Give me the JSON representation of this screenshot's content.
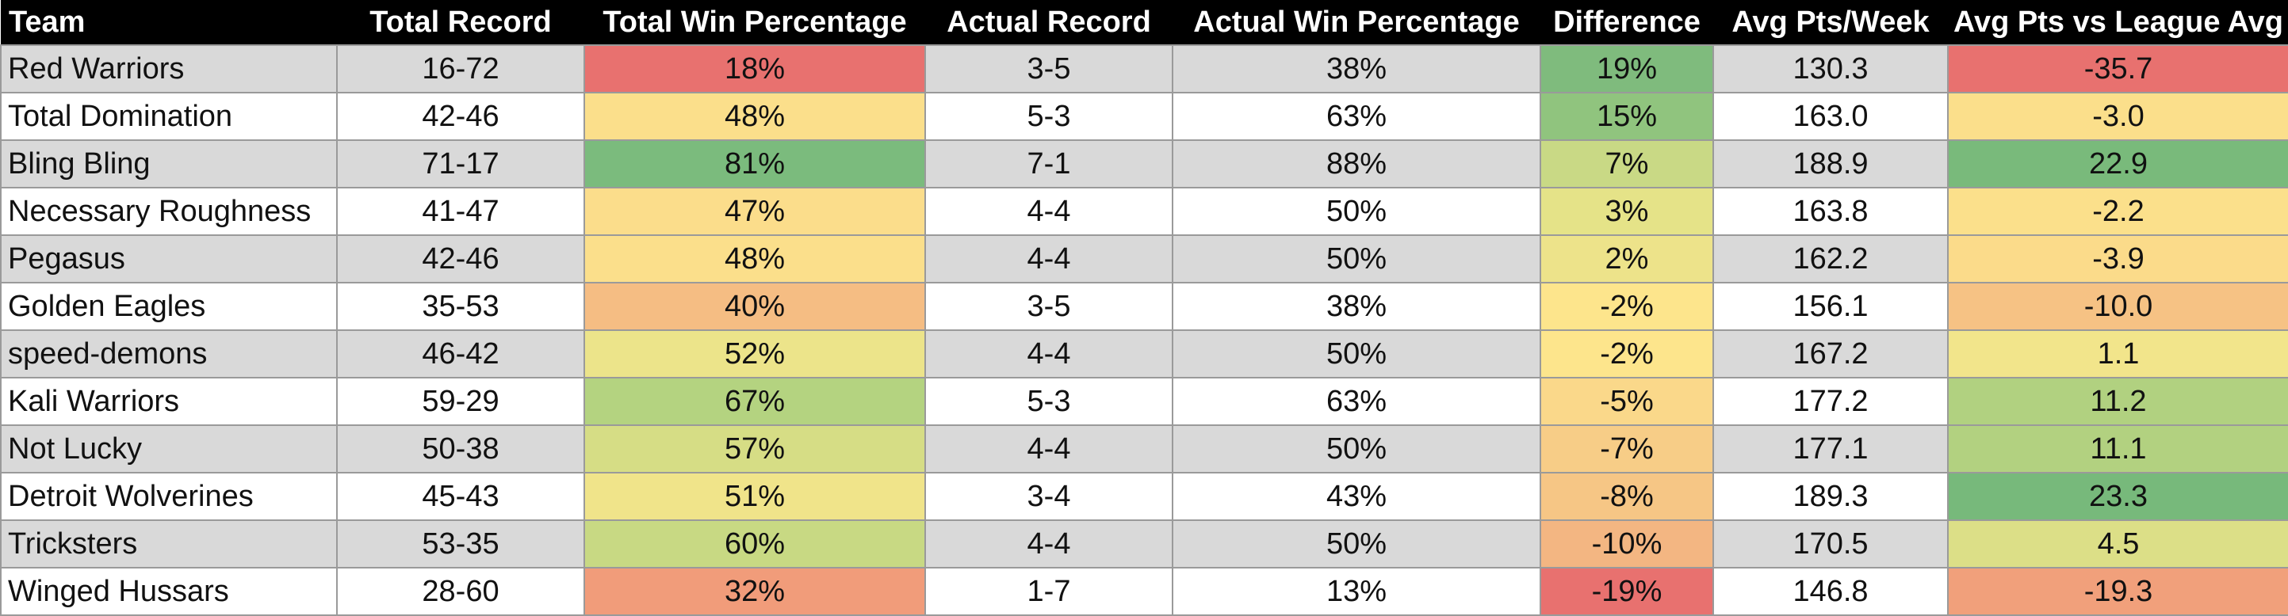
{
  "colors": {
    "header_bg": "#000000",
    "header_text": "#ffffff",
    "stripe": "#d9d9d9"
  },
  "headers": [
    "Team",
    "Total Record",
    "Total Win Percentage",
    "Actual Record",
    "Actual Win Percentage",
    "Difference",
    "Avg Pts/Week",
    "Avg Pts vs League Avg"
  ],
  "rows": [
    {
      "team": "Red Warriors",
      "total_record": "16-72",
      "total_win_pct": "18%",
      "actual_record": "3-5",
      "actual_win_pct": "38%",
      "difference": "19%",
      "avg_pts": "130.3",
      "vs_league": "-35.7",
      "total_win_pct_color": "#e8716f",
      "difference_color": "#7fbb7d",
      "vs_league_color": "#e8716f"
    },
    {
      "team": "Total Domination",
      "total_record": "42-46",
      "total_win_pct": "48%",
      "actual_record": "5-3",
      "actual_win_pct": "63%",
      "difference": "15%",
      "avg_pts": "163.0",
      "vs_league": "-3.0",
      "total_win_pct_color": "#fbdf8b",
      "difference_color": "#90c47e",
      "vs_league_color": "#fbdf8b"
    },
    {
      "team": "Bling Bling",
      "total_record": "71-17",
      "total_win_pct": "81%",
      "actual_record": "7-1",
      "actual_win_pct": "88%",
      "difference": "7%",
      "avg_pts": "188.9",
      "vs_league": "22.9",
      "total_win_pct_color": "#7bbb7d",
      "difference_color": "#c9d985",
      "vs_league_color": "#79ba7b"
    },
    {
      "team": "Necessary Roughness",
      "total_record": "41-47",
      "total_win_pct": "47%",
      "actual_record": "4-4",
      "actual_win_pct": "50%",
      "difference": "3%",
      "avg_pts": "163.8",
      "vs_league": "-2.2",
      "total_win_pct_color": "#fbdd8b",
      "difference_color": "#e5e388",
      "vs_league_color": "#fbe08b"
    },
    {
      "team": "Pegasus",
      "total_record": "42-46",
      "total_win_pct": "48%",
      "actual_record": "4-4",
      "actual_win_pct": "50%",
      "difference": "2%",
      "avg_pts": "162.2",
      "vs_league": "-3.9",
      "total_win_pct_color": "#fbdf8b",
      "difference_color": "#ede38a",
      "vs_league_color": "#fbdb8a"
    },
    {
      "team": "Golden Eagles",
      "total_record": "35-53",
      "total_win_pct": "40%",
      "actual_record": "3-5",
      "actual_win_pct": "38%",
      "difference": "-2%",
      "avg_pts": "156.1",
      "vs_league": "-10.0",
      "total_win_pct_color": "#f5bd83",
      "difference_color": "#fde58c",
      "vs_league_color": "#f6c284"
    },
    {
      "team": "speed-demons",
      "total_record": "46-42",
      "total_win_pct": "52%",
      "actual_record": "4-4",
      "actual_win_pct": "50%",
      "difference": "-2%",
      "avg_pts": "167.2",
      "vs_league": "1.1",
      "total_win_pct_color": "#ece48a",
      "difference_color": "#fde58c",
      "vs_league_color": "#f2e58b"
    },
    {
      "team": "Kali Warriors",
      "total_record": "59-29",
      "total_win_pct": "67%",
      "actual_record": "5-3",
      "actual_win_pct": "63%",
      "difference": "-5%",
      "avg_pts": "177.2",
      "vs_league": "11.2",
      "total_win_pct_color": "#b4d380",
      "difference_color": "#fad88a",
      "vs_league_color": "#b1d180"
    },
    {
      "team": "Not Lucky",
      "total_record": "50-38",
      "total_win_pct": "57%",
      "actual_record": "4-4",
      "actual_win_pct": "50%",
      "difference": "-7%",
      "avg_pts": "177.1",
      "vs_league": "11.1",
      "total_win_pct_color": "#d6dd85",
      "difference_color": "#f7cd87",
      "vs_league_color": "#b2d180"
    },
    {
      "team": "Detroit Wolverines",
      "total_record": "45-43",
      "total_win_pct": "51%",
      "actual_record": "3-4",
      "actual_win_pct": "43%",
      "difference": "-8%",
      "avg_pts": "189.3",
      "vs_league": "23.3",
      "total_win_pct_color": "#f0e48a",
      "difference_color": "#f6c685",
      "vs_league_color": "#77b97b"
    },
    {
      "team": "Tricksters",
      "total_record": "53-35",
      "total_win_pct": "60%",
      "actual_record": "4-4",
      "actual_win_pct": "50%",
      "difference": "-10%",
      "avg_pts": "170.5",
      "vs_league": "4.5",
      "total_win_pct_color": "#c8d983",
      "difference_color": "#f3b682",
      "vs_league_color": "#dcdf87"
    },
    {
      "team": "Winged Hussars",
      "total_record": "28-60",
      "total_win_pct": "32%",
      "actual_record": "1-7",
      "actual_win_pct": "13%",
      "difference": "-19%",
      "avg_pts": "146.8",
      "vs_league": "-19.3",
      "total_win_pct_color": "#f19c7a",
      "difference_color": "#e8716f",
      "vs_league_color": "#f1a07b"
    }
  ]
}
